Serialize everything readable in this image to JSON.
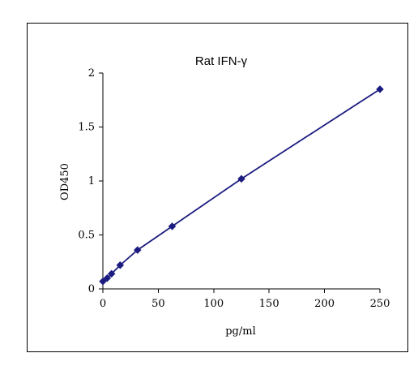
{
  "chart_data": {
    "type": "line",
    "title": "Rat IFN-γ",
    "xlabel": "pg/ml",
    "ylabel": "OD450",
    "xlim": [
      0,
      250
    ],
    "ylim": [
      0,
      2
    ],
    "xticks": [
      0,
      50,
      100,
      150,
      200,
      250
    ],
    "yticks": [
      0,
      0.5,
      1,
      1.5,
      2
    ],
    "x_tick_labels": [
      "0",
      "50",
      "100",
      "150",
      "200",
      "250"
    ],
    "y_tick_labels": [
      "0",
      "0.5",
      "1",
      "1.5",
      "2"
    ],
    "grid": false,
    "legend": "none",
    "marker": "diamond",
    "color": "#1c1c80",
    "series": [
      {
        "x": [
          0,
          3.9,
          7.8,
          15.6,
          31.25,
          62.5,
          125,
          250
        ],
        "y": [
          0.07,
          0.1,
          0.14,
          0.22,
          0.36,
          0.58,
          1.02,
          1.85
        ]
      }
    ]
  }
}
